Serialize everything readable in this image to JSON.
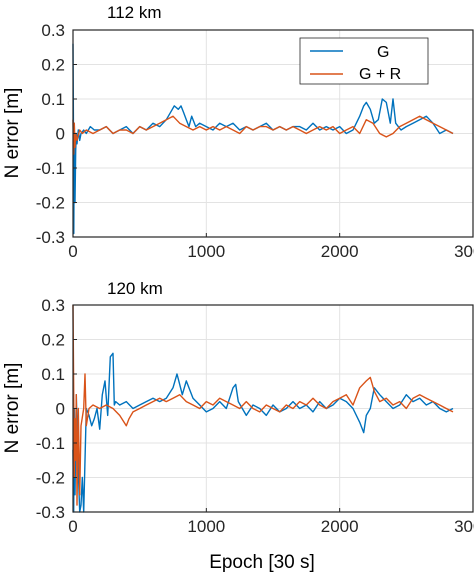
{
  "chart_data": [
    {
      "type": "line",
      "title": "112 km",
      "ylabel": "N error [m]",
      "xlabel": "",
      "xlim": [
        0,
        3000
      ],
      "ylim": [
        -0.3,
        0.3
      ],
      "xticks": [
        "0",
        "1000",
        "2000",
        "3000"
      ],
      "yticks": [
        "-0.3",
        "-0.2",
        "-0.1",
        "0",
        "0.1",
        "0.2",
        "0.3"
      ],
      "grid": true,
      "legend_position": "top-right",
      "series": [
        {
          "name": "G",
          "color": "#0072BD",
          "x": [
            0,
            3,
            6,
            10,
            15,
            20,
            25,
            30,
            40,
            50,
            60,
            80,
            100,
            130,
            160,
            200,
            250,
            300,
            350,
            400,
            450,
            500,
            550,
            600,
            650,
            700,
            730,
            760,
            790,
            810,
            830,
            850,
            870,
            890,
            920,
            950,
            1000,
            1050,
            1100,
            1150,
            1200,
            1250,
            1300,
            1350,
            1400,
            1450,
            1500,
            1550,
            1600,
            1650,
            1700,
            1750,
            1800,
            1850,
            1900,
            1950,
            2000,
            2050,
            2100,
            2150,
            2180,
            2200,
            2230,
            2260,
            2290,
            2320,
            2350,
            2380,
            2400,
            2420,
            2440,
            2460,
            2500,
            2550,
            2600,
            2650,
            2700,
            2750,
            2800,
            2850
          ],
          "y": [
            0.26,
            0.04,
            -0.29,
            0.03,
            -0.2,
            -0.05,
            0.0,
            -0.03,
            0.01,
            -0.02,
            0.0,
            0.01,
            0.0,
            0.02,
            0.01,
            0.01,
            0.02,
            0.0,
            0.01,
            0.02,
            0.0,
            0.02,
            0.01,
            0.03,
            0.02,
            0.04,
            0.06,
            0.08,
            0.07,
            0.08,
            0.06,
            0.04,
            0.02,
            0.05,
            0.02,
            0.03,
            0.02,
            0.01,
            0.03,
            0.02,
            0.03,
            0.01,
            0.02,
            0.01,
            0.02,
            0.03,
            0.01,
            0.02,
            0.01,
            0.02,
            0.02,
            0.01,
            0.03,
            0.01,
            0.02,
            0.01,
            0.02,
            0.0,
            0.01,
            0.05,
            0.08,
            0.09,
            0.07,
            0.03,
            0.04,
            0.1,
            0.09,
            0.03,
            0.1,
            0.03,
            0.02,
            0.01,
            0.02,
            0.03,
            0.04,
            0.05,
            0.03,
            0.0,
            0.01,
            0.0
          ]
        },
        {
          "name": "G + R",
          "color": "#D95319",
          "x": [
            0,
            5,
            10,
            15,
            20,
            30,
            50,
            70,
            100,
            150,
            200,
            250,
            300,
            350,
            400,
            450,
            500,
            550,
            600,
            650,
            700,
            750,
            800,
            850,
            900,
            950,
            1000,
            1050,
            1100,
            1150,
            1200,
            1250,
            1300,
            1350,
            1400,
            1450,
            1500,
            1550,
            1600,
            1650,
            1700,
            1750,
            1800,
            1850,
            1900,
            1950,
            2000,
            2050,
            2100,
            2150,
            2200,
            2250,
            2300,
            2350,
            2400,
            2450,
            2500,
            2550,
            2600,
            2650,
            2700,
            2750,
            2800,
            2850
          ],
          "y": [
            0.04,
            -0.06,
            0.03,
            -0.04,
            0.0,
            -0.02,
            0.01,
            0.0,
            0.01,
            0.0,
            0.01,
            0.02,
            0.0,
            0.01,
            0.01,
            0.0,
            0.02,
            0.01,
            0.02,
            0.03,
            0.04,
            0.05,
            0.03,
            0.02,
            0.01,
            0.02,
            0.01,
            0.02,
            0.01,
            0.02,
            0.01,
            0.0,
            0.02,
            0.01,
            0.02,
            0.02,
            0.01,
            0.02,
            0.01,
            0.02,
            0.01,
            0.0,
            0.01,
            0.02,
            0.01,
            0.02,
            0.0,
            0.01,
            0.02,
            0.0,
            0.04,
            0.03,
            0.0,
            -0.01,
            0.0,
            0.02,
            0.03,
            0.04,
            0.05,
            0.04,
            0.03,
            0.02,
            0.01,
            0.0
          ]
        }
      ]
    },
    {
      "type": "line",
      "title": "120 km",
      "ylabel": "N error [m]",
      "xlabel": "Epoch [30 s]",
      "xlim": [
        0,
        3000
      ],
      "ylim": [
        -0.3,
        0.3
      ],
      "xticks": [
        "0",
        "1000",
        "2000",
        "3000"
      ],
      "yticks": [
        "-0.3",
        "-0.2",
        "-0.1",
        "0",
        "0.1",
        "0.2",
        "0.3"
      ],
      "grid": true,
      "series": [
        {
          "name": "G",
          "color": "#0072BD",
          "x": [
            0,
            5,
            10,
            15,
            20,
            25,
            30,
            40,
            50,
            60,
            70,
            80,
            100,
            120,
            140,
            160,
            180,
            200,
            220,
            240,
            260,
            280,
            300,
            310,
            320,
            350,
            400,
            450,
            500,
            550,
            600,
            650,
            700,
            750,
            780,
            800,
            820,
            850,
            900,
            950,
            1000,
            1050,
            1100,
            1150,
            1200,
            1220,
            1240,
            1270,
            1300,
            1350,
            1400,
            1450,
            1500,
            1550,
            1600,
            1650,
            1700,
            1750,
            1800,
            1850,
            1900,
            1950,
            2000,
            2050,
            2100,
            2150,
            2180,
            2200,
            2230,
            2260,
            2300,
            2350,
            2400,
            2450,
            2500,
            2550,
            2600,
            2650,
            2700,
            2750,
            2800,
            2850
          ],
          "y": [
            -0.12,
            -0.3,
            0.0,
            -0.25,
            -0.1,
            0.04,
            -0.05,
            -0.18,
            -0.3,
            -0.28,
            -0.2,
            -0.3,
            0.0,
            -0.02,
            -0.05,
            -0.03,
            0.0,
            -0.06,
            0.04,
            0.08,
            -0.02,
            0.15,
            0.16,
            0.01,
            0.02,
            0.01,
            0.02,
            0.0,
            0.01,
            0.02,
            0.03,
            0.02,
            0.03,
            0.06,
            0.1,
            0.07,
            0.04,
            0.08,
            0.03,
            0.01,
            -0.01,
            0.0,
            0.02,
            0.0,
            0.06,
            0.07,
            0.02,
            0.0,
            -0.02,
            0.01,
            0.0,
            -0.02,
            0.01,
            -0.01,
            0.0,
            0.02,
            0.0,
            0.01,
            -0.01,
            0.02,
            0.0,
            0.01,
            0.03,
            0.02,
            0.0,
            -0.04,
            -0.07,
            -0.02,
            0.0,
            0.06,
            0.04,
            0.02,
            0.0,
            0.01,
            0.04,
            0.02,
            0.03,
            0.01,
            0.02,
            0.0,
            -0.01,
            0.0
          ]
        },
        {
          "name": "G + R",
          "color": "#D95319",
          "x": [
            0,
            5,
            10,
            15,
            20,
            25,
            30,
            40,
            50,
            60,
            80,
            90,
            100,
            120,
            150,
            200,
            250,
            300,
            350,
            400,
            420,
            450,
            500,
            550,
            600,
            650,
            700,
            750,
            800,
            850,
            900,
            950,
            1000,
            1050,
            1100,
            1150,
            1200,
            1250,
            1300,
            1350,
            1400,
            1450,
            1500,
            1550,
            1600,
            1650,
            1700,
            1750,
            1800,
            1850,
            1900,
            1950,
            2000,
            2050,
            2100,
            2150,
            2200,
            2230,
            2260,
            2300,
            2350,
            2400,
            2450,
            2500,
            2550,
            2600,
            2650,
            2700,
            2750,
            2800,
            2850
          ],
          "y": [
            0.3,
            0.05,
            -0.2,
            -0.03,
            -0.15,
            0.04,
            -0.28,
            0.0,
            -0.25,
            -0.05,
            0.0,
            0.1,
            -0.05,
            0.0,
            0.01,
            0.0,
            0.01,
            0.0,
            -0.02,
            -0.05,
            -0.03,
            -0.01,
            0.0,
            0.01,
            0.02,
            0.03,
            0.02,
            0.03,
            0.04,
            0.02,
            0.01,
            0.0,
            0.02,
            0.01,
            0.03,
            0.02,
            0.01,
            0.0,
            0.02,
            0.0,
            -0.01,
            0.01,
            0.0,
            -0.01,
            0.01,
            0.0,
            0.02,
            0.01,
            0.03,
            0.01,
            0.0,
            0.02,
            0.03,
            0.04,
            0.01,
            0.06,
            0.08,
            0.09,
            0.05,
            0.02,
            0.03,
            0.01,
            0.02,
            0.0,
            0.03,
            0.04,
            0.03,
            0.02,
            0.01,
            0.0,
            -0.01
          ]
        }
      ]
    }
  ]
}
